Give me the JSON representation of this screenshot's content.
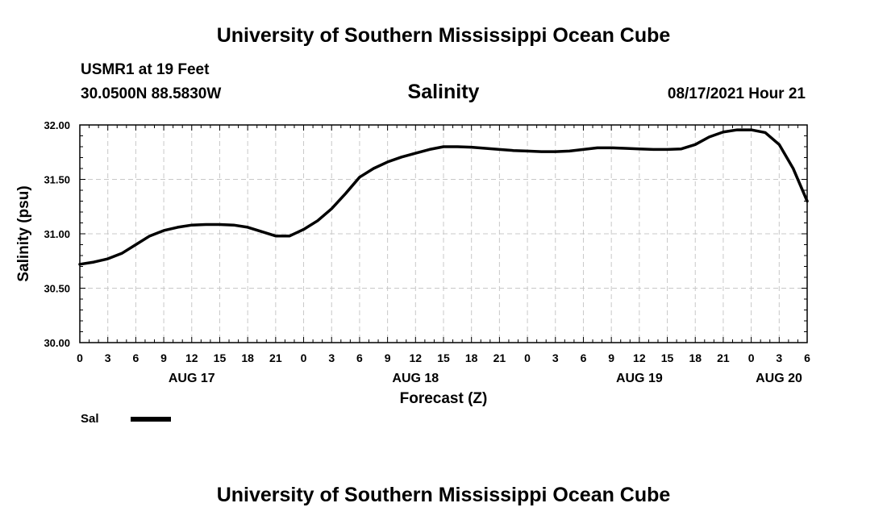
{
  "header": {
    "title": "University of Southern Mississippi Ocean Cube",
    "station": "USMR1 at 19 Feet",
    "coords": "30.0500N  88.5830W",
    "variable": "Salinity",
    "datetime": "08/17/2021 Hour 21"
  },
  "footer": {
    "title": "University of Southern Mississippi Ocean Cube"
  },
  "chart_data": {
    "type": "line",
    "title": "Salinity",
    "xlabel": "Forecast (Z)",
    "ylabel": "Salinity (psu)",
    "ylim": [
      30.0,
      32.0
    ],
    "yticks": [
      "30.00",
      "30.50",
      "31.00",
      "31.50",
      "32.00"
    ],
    "xlim": [
      0,
      78
    ],
    "xtick_labels": [
      "0",
      "3",
      "6",
      "9",
      "12",
      "15",
      "18",
      "21",
      "0",
      "3",
      "6",
      "9",
      "12",
      "15",
      "18",
      "21",
      "0",
      "3",
      "6",
      "9",
      "12",
      "15",
      "18",
      "21",
      "0",
      "3",
      "6"
    ],
    "date_labels": [
      {
        "label": "AUG 17",
        "hour": 12
      },
      {
        "label": "AUG 18",
        "hour": 36
      },
      {
        "label": "AUG 19",
        "hour": 60
      },
      {
        "label": "AUG 20",
        "hour": 78
      }
    ],
    "grid": true,
    "series": [
      {
        "name": "Sal",
        "color": "#000000",
        "x": [
          0,
          1.5,
          3,
          4.5,
          6,
          7.5,
          9,
          10.5,
          12,
          13.5,
          15,
          16.5,
          18,
          19.5,
          21,
          22.5,
          24,
          25.5,
          27,
          28.5,
          30,
          31.5,
          33,
          34.5,
          36,
          37.5,
          39,
          40.5,
          42,
          43.5,
          45,
          46.5,
          48,
          49.5,
          51,
          52.5,
          54,
          55.5,
          57,
          58.5,
          60,
          61.5,
          63,
          64.5,
          66,
          67.5,
          69,
          70.5,
          72,
          73.5,
          75,
          76.5,
          78
        ],
        "values": [
          30.72,
          30.74,
          30.77,
          30.82,
          30.9,
          30.98,
          31.03,
          31.06,
          31.08,
          31.085,
          31.085,
          31.08,
          31.06,
          31.02,
          30.98,
          30.98,
          31.04,
          31.12,
          31.23,
          31.37,
          31.52,
          31.6,
          31.66,
          31.705,
          31.74,
          31.775,
          31.8,
          31.8,
          31.795,
          31.785,
          31.775,
          31.765,
          31.76,
          31.755,
          31.755,
          31.76,
          31.775,
          31.79,
          31.79,
          31.785,
          31.78,
          31.775,
          31.775,
          31.78,
          31.82,
          31.89,
          31.935,
          31.955,
          31.955,
          31.93,
          31.82,
          31.6,
          31.3
        ]
      }
    ],
    "legend": {
      "label": "Sal",
      "position": "bottom-left"
    }
  }
}
